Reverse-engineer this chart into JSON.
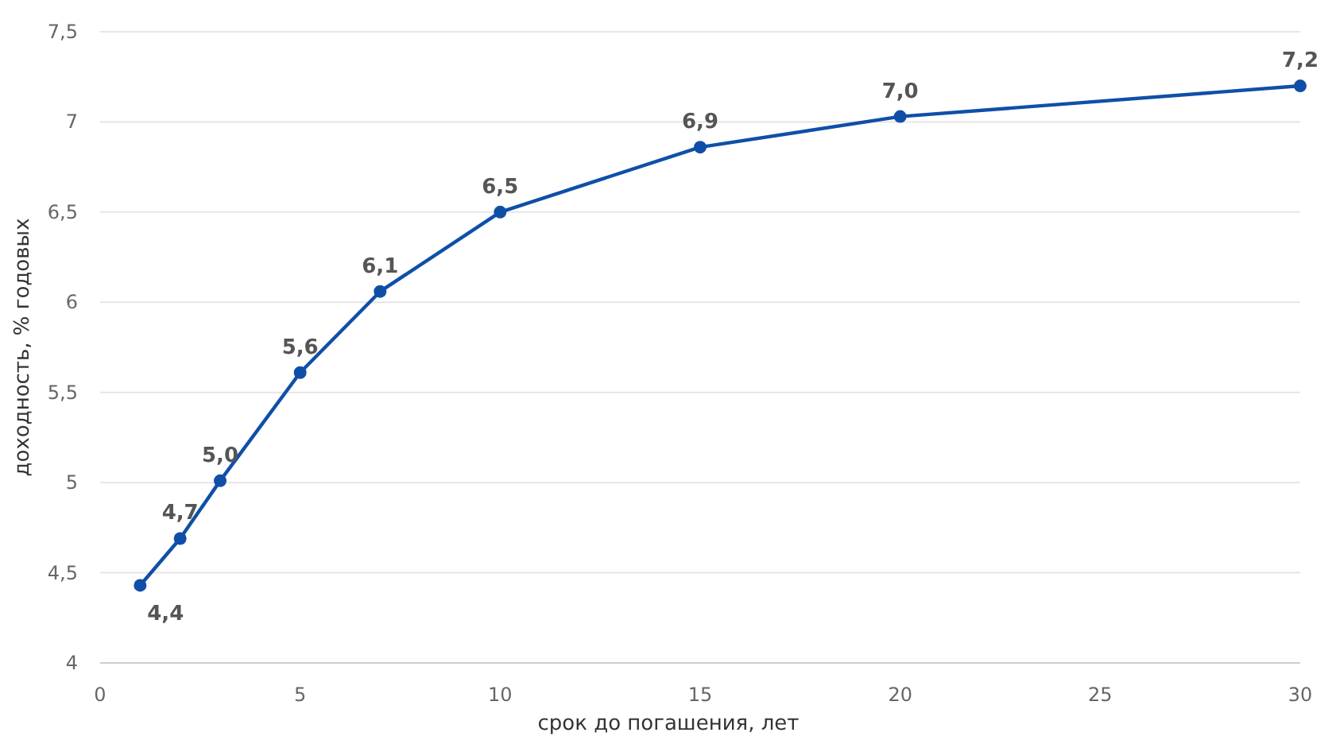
{
  "chart_data": {
    "type": "line",
    "xlabel": "срок до погашения, лет",
    "ylabel": "доходность, % годовых",
    "x": [
      1,
      2,
      3,
      5,
      7,
      10,
      15,
      20,
      30
    ],
    "series": [
      {
        "color": "#0f4fa8",
        "values": [
          4.43,
          4.69,
          5.01,
          5.61,
          6.06,
          6.5,
          6.86,
          7.03,
          7.2
        ],
        "value_labels": [
          "4,4",
          "4,7",
          "5,0",
          "5,6",
          "6,1",
          "6,5",
          "6,9",
          "7,0",
          "7,2"
        ]
      }
    ],
    "xlim": [
      0,
      30
    ],
    "xticks": [
      0,
      5,
      10,
      15,
      20,
      25,
      30
    ],
    "ylim": [
      4,
      7.5
    ],
    "yticks": [
      4,
      {
        "value": 4.5,
        "label": "4,5"
      },
      5,
      {
        "value": 5.5,
        "label": "5,5"
      },
      6,
      {
        "value": 6.5,
        "label": "6,5"
      },
      7,
      {
        "value": 7.5,
        "label": "7,5"
      }
    ],
    "grid": "y",
    "marker": "circle",
    "line_style": "solid"
  }
}
